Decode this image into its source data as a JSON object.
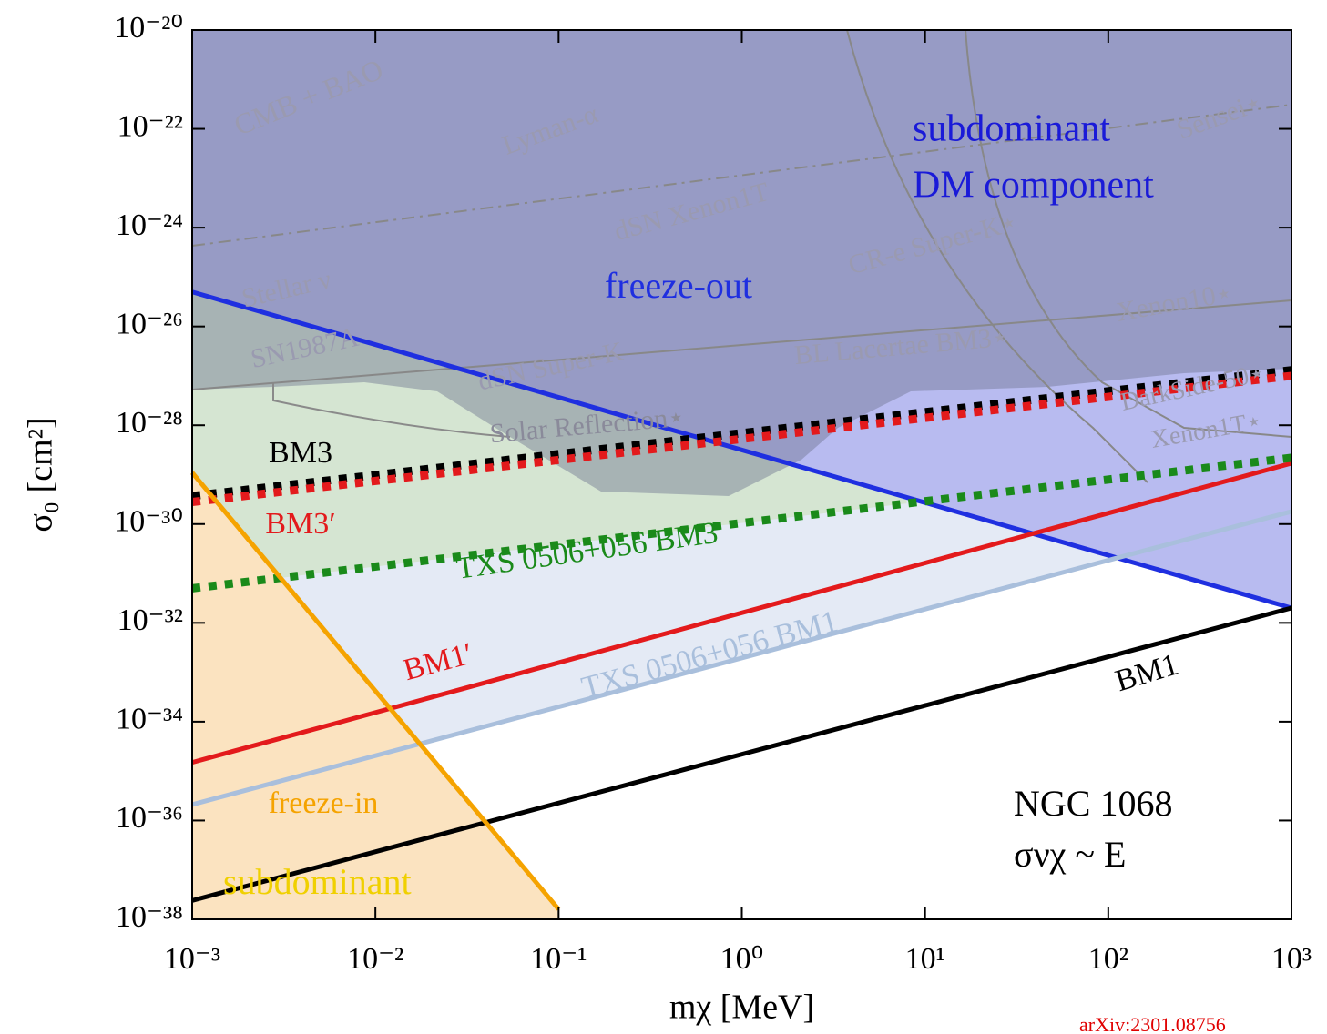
{
  "chart_data": {
    "type": "line",
    "xlabel": "mχ [MeV]",
    "ylabel": "σ₀ [cm²]",
    "xscale": "log",
    "yscale": "log",
    "xlim": [
      0.001,
      1000
    ],
    "ylim": [
      1e-38,
      1e-20
    ],
    "xticks": [
      {
        "value": 0.001,
        "label": "10⁻³"
      },
      {
        "value": 0.01,
        "label": "10⁻²"
      },
      {
        "value": 0.1,
        "label": "10⁻¹"
      },
      {
        "value": 1,
        "label": "10⁰"
      },
      {
        "value": 10,
        "label": "10¹"
      },
      {
        "value": 100,
        "label": "10²"
      },
      {
        "value": 1000,
        "label": "10³"
      }
    ],
    "yticks": [
      {
        "value": 1e-20,
        "label": "10⁻²⁰"
      },
      {
        "value": 1e-22,
        "label": "10⁻²²"
      },
      {
        "value": 1e-24,
        "label": "10⁻²⁴"
      },
      {
        "value": 1e-26,
        "label": "10⁻²⁶"
      },
      {
        "value": 1e-28,
        "label": "10⁻²⁸"
      },
      {
        "value": 1e-30,
        "label": "10⁻³⁰"
      },
      {
        "value": 1e-32,
        "label": "10⁻³²"
      },
      {
        "value": 1e-34,
        "label": "10⁻³⁴"
      },
      {
        "value": 1e-36,
        "label": "10⁻³⁶"
      },
      {
        "value": 1e-38,
        "label": "10⁻³⁸"
      }
    ],
    "series": [
      {
        "name": "freeze-out",
        "color": "#1f2fe0",
        "style": "solid",
        "x": [
          0.001,
          1000
        ],
        "values": [
          5e-26,
          2e-32
        ]
      },
      {
        "name": "BM1",
        "color": "#000000",
        "style": "solid",
        "x": [
          0.001,
          1000
        ],
        "values": [
          2.4e-38,
          2e-32
        ]
      },
      {
        "name": "BM1′",
        "color": "#e31a1c",
        "style": "solid",
        "x": [
          0.001,
          1000
        ],
        "values": [
          1.5e-35,
          1.7e-29
        ]
      },
      {
        "name": "TXS 0506+056 BM1",
        "color": "#a9bfdc",
        "style": "solid",
        "x": [
          0.001,
          1000
        ],
        "values": [
          2.1e-36,
          1.8e-30
        ]
      },
      {
        "name": "TXS 0506+056 BM3",
        "color": "#1a8a1a",
        "style": "dotted",
        "x": [
          0.001,
          1000
        ],
        "values": [
          5e-32,
          2.2e-29
        ]
      },
      {
        "name": "BM3",
        "color": "#000000",
        "style": "dotted",
        "x": [
          0.001,
          1000
        ],
        "values": [
          3.7e-30,
          1.3e-27
        ]
      },
      {
        "name": "BM3′",
        "color": "#e31a1c",
        "style": "dotted",
        "x": [
          0.001,
          1000
        ],
        "values": [
          2.8e-30,
          1e-27
        ]
      },
      {
        "name": "freeze-in",
        "color": "#f5a300",
        "style": "solid",
        "x": [
          0.001,
          0.1
        ],
        "values": [
          1.1e-29,
          1.6e-38
        ]
      }
    ],
    "annotations": [
      "subdominant",
      "DM component",
      "subdominant",
      "NGC 1068",
      "σνχ ~ E",
      "arXiv:2301.08756",
      "CMB + BAO",
      "Lyman-α",
      "dSN Xenon1T",
      "Stellar ν",
      "SN1987A",
      "dSN Super-K",
      "Solar Reflection⋆",
      "CR-e Super-K⋆",
      "BL Lacertae BM3⋆",
      "Xenon10⋆",
      "DarkSide-50⋆",
      "Xenon1T⋆",
      "Sensei⋆"
    ]
  }
}
